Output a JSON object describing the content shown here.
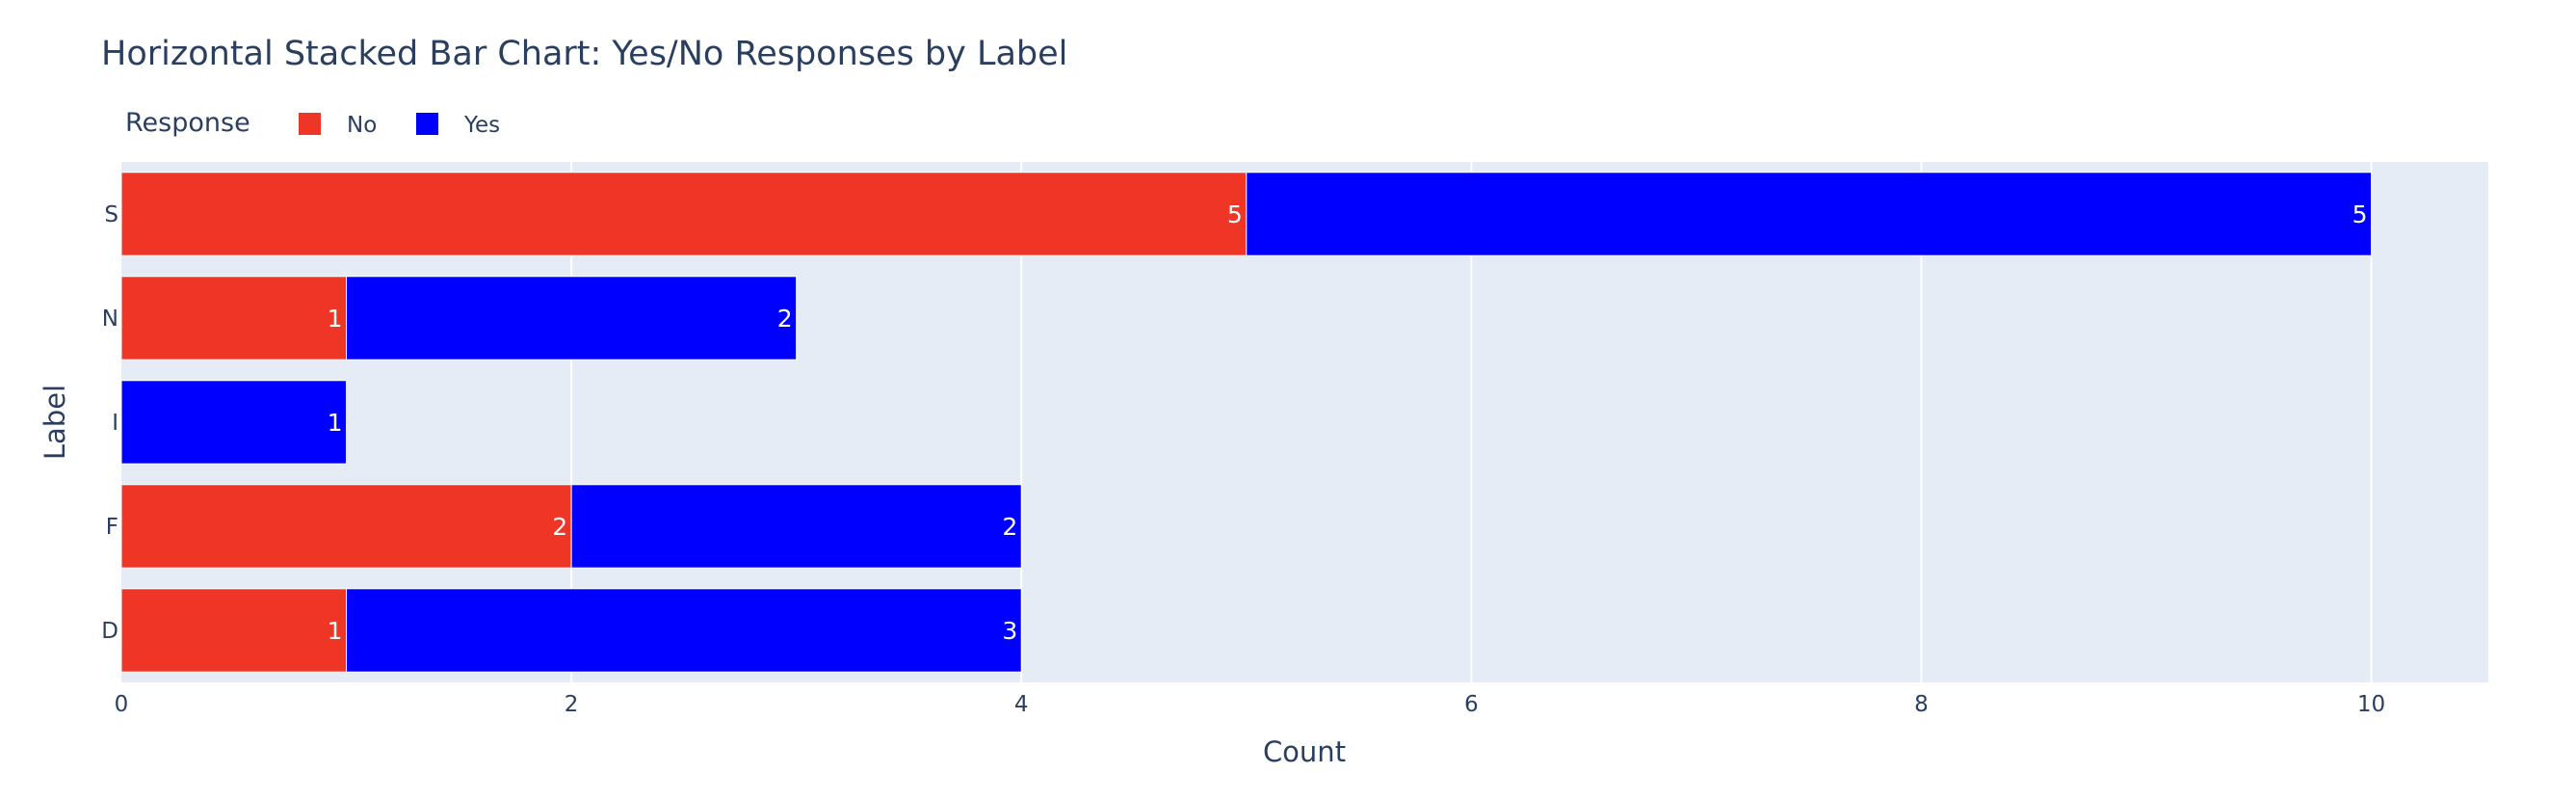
{
  "chart_data": {
    "type": "bar",
    "orientation": "horizontal",
    "stacked": true,
    "title": "Horizontal Stacked Bar Chart: Yes/No Responses by Label",
    "xlabel": "Count",
    "ylabel": "Label",
    "xlim": [
      0,
      10.52
    ],
    "xticks": [
      0,
      2,
      4,
      6,
      8,
      10
    ],
    "categories": [
      "D",
      "F",
      "I",
      "N",
      "S"
    ],
    "legend": {
      "title": "Response",
      "placement": "top-left, horizontal"
    },
    "grid": true,
    "series": [
      {
        "name": "No",
        "color": "#ef3526",
        "values": [
          1,
          2,
          0,
          1,
          5
        ]
      },
      {
        "name": "Yes",
        "color": "#0000ff",
        "values": [
          3,
          2,
          1,
          2,
          5
        ]
      }
    ]
  },
  "colors": {
    "plot_background": "#e5ecf6",
    "gridline": "#ffffff",
    "text": "#2a3f5f"
  }
}
